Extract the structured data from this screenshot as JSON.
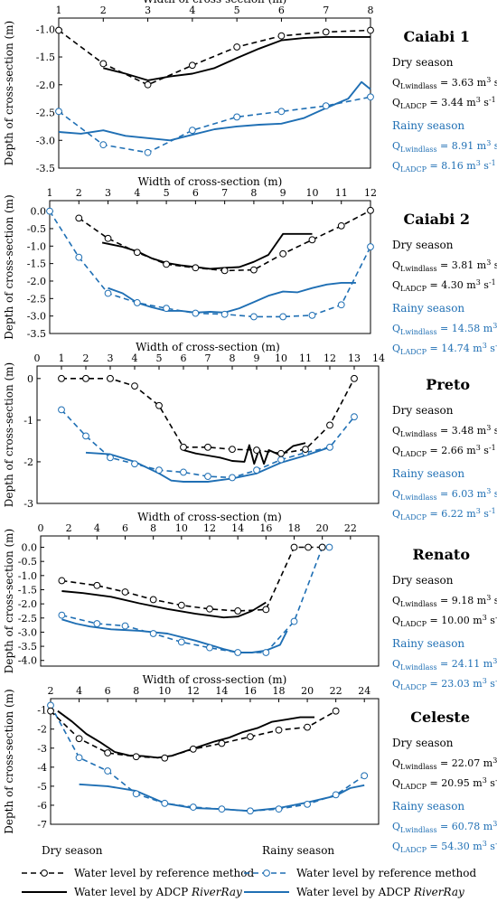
{
  "colors": {
    "dry": "#000000",
    "rainy": "#1f6fb4"
  },
  "labels": {
    "xlabel": "Width of cross-section (m)",
    "ylabel": "Depth of cross-section (m)",
    "dry_season": "Dry season",
    "rainy_season": "Rainy season",
    "q_windlass": "Q",
    "q_windlass_sub": "Lwindlass",
    "q_adcp": "Q",
    "q_adcp_sub": "LADCP",
    "unit_base": " m",
    "unit_m_exp": "3",
    "unit_s": " s",
    "unit_s_exp": "-1"
  },
  "legend": {
    "dry_title": "Dry season",
    "rainy_title": "Rainy season",
    "reference": "Water level by reference method",
    "adcp_prefix": "Water level by ADCP ",
    "adcp_device": "RiverRay"
  },
  "chart_data": [
    {
      "type": "line",
      "title": "Caiabi 1",
      "xlim": [
        1,
        8
      ],
      "ylim": [
        -3.5,
        -0.8
      ],
      "xticks": [
        1,
        2,
        3,
        4,
        5,
        6,
        7,
        8
      ],
      "xtick_labels": [
        "1",
        "2",
        "3",
        "4",
        "5",
        "6",
        "7",
        "8"
      ],
      "yticks": [
        -1.0,
        -1.5,
        -2.0,
        -2.5,
        -3.0,
        -3.5
      ],
      "ytick_labels": [
        "-1.0",
        "-1.5",
        "-2.0",
        "-2.5",
        "-3.0",
        "-3.5"
      ],
      "dry": {
        "q_windlass": "3.63",
        "q_adcp": "3.44",
        "reference": {
          "x": [
            1,
            2,
            3,
            4,
            5,
            6,
            7,
            8
          ],
          "y": [
            -1.02,
            -1.62,
            -2.0,
            -1.65,
            -1.32,
            -1.12,
            -1.05,
            -1.02
          ]
        },
        "adcp": {
          "x": [
            2.0,
            2.5,
            3.0,
            3.5,
            4.0,
            4.5,
            5.0,
            5.5,
            6.0,
            6.5,
            7.0,
            7.5,
            8.0
          ],
          "y": [
            -1.7,
            -1.8,
            -1.92,
            -1.85,
            -1.8,
            -1.7,
            -1.52,
            -1.35,
            -1.2,
            -1.16,
            -1.14,
            -1.14,
            -1.14
          ]
        }
      },
      "rainy": {
        "q_windlass": "8.91",
        "q_adcp": "8.16",
        "reference": {
          "x": [
            1,
            2,
            3,
            4,
            5,
            6,
            7,
            8
          ],
          "y": [
            -2.48,
            -3.08,
            -3.22,
            -2.82,
            -2.58,
            -2.48,
            -2.38,
            -2.22
          ]
        },
        "adcp": {
          "x": [
            1.0,
            1.5,
            2.0,
            2.5,
            3.0,
            3.5,
            4.0,
            4.5,
            5.0,
            5.5,
            6.0,
            6.5,
            7.0,
            7.5,
            7.8,
            8.0
          ],
          "y": [
            -2.85,
            -2.88,
            -2.82,
            -2.92,
            -2.96,
            -3.0,
            -2.9,
            -2.8,
            -2.75,
            -2.72,
            -2.7,
            -2.6,
            -2.42,
            -2.25,
            -1.95,
            -2.08
          ]
        }
      }
    },
    {
      "type": "line",
      "title": "Caiabi 2",
      "xlim": [
        1,
        12
      ],
      "ylim": [
        -3.5,
        0.3
      ],
      "xticks": [
        1,
        2,
        3,
        4,
        5,
        6,
        7,
        8,
        9,
        10,
        11,
        12
      ],
      "xtick_labels": [
        "1",
        "2",
        "3",
        "4",
        "5",
        "6",
        "7",
        "8",
        "9",
        "10",
        "11",
        "12"
      ],
      "yticks": [
        0.0,
        -0.5,
        -1.0,
        -1.5,
        -2.0,
        -2.5,
        -3.0,
        -3.5
      ],
      "ytick_labels": [
        "0.0",
        "-0.5",
        "-1.0",
        "-1.5",
        "-2.0",
        "-2.5",
        "-3.0",
        "-3.5"
      ],
      "dry": {
        "q_windlass": "3.81",
        "q_adcp": "4.30",
        "reference": {
          "x": [
            2,
            3,
            4,
            5,
            6,
            7,
            8,
            9,
            10,
            11,
            12
          ],
          "y": [
            -0.2,
            -0.78,
            -1.18,
            -1.52,
            -1.62,
            -1.7,
            -1.68,
            -1.22,
            -0.82,
            -0.42,
            0.02
          ]
        },
        "adcp": {
          "x": [
            2.8,
            3.5,
            4.0,
            4.5,
            5.0,
            5.5,
            6.0,
            6.5,
            7.0,
            7.5,
            8.0,
            8.5,
            9.0,
            9.5,
            10.0
          ],
          "y": [
            -0.9,
            -1.02,
            -1.15,
            -1.35,
            -1.48,
            -1.55,
            -1.6,
            -1.65,
            -1.62,
            -1.6,
            -1.45,
            -1.25,
            -0.65,
            -0.65,
            -0.65
          ]
        }
      },
      "rainy": {
        "q_windlass": "14.58",
        "q_adcp": "14.74",
        "reference": {
          "x": [
            1,
            2,
            3,
            4,
            5,
            6,
            7,
            8,
            9,
            10,
            11,
            12
          ],
          "y": [
            0.0,
            -1.32,
            -2.35,
            -2.62,
            -2.78,
            -2.92,
            -2.95,
            -3.02,
            -3.02,
            -2.98,
            -2.68,
            -1.02
          ]
        },
        "adcp": {
          "x": [
            3.0,
            3.5,
            4.0,
            4.5,
            5.0,
            5.5,
            6.0,
            6.5,
            7.0,
            7.5,
            8.0,
            8.5,
            9.0,
            9.5,
            10.0,
            10.5,
            11.0,
            11.5
          ],
          "y": [
            -2.2,
            -2.35,
            -2.62,
            -2.75,
            -2.85,
            -2.85,
            -2.9,
            -2.88,
            -2.9,
            -2.78,
            -2.6,
            -2.42,
            -2.3,
            -2.32,
            -2.2,
            -2.1,
            -2.05,
            -2.05
          ]
        }
      }
    },
    {
      "type": "line",
      "title": "Preto",
      "xlim": [
        0,
        14
      ],
      "ylim": [
        -3,
        0.3
      ],
      "xticks": [
        0,
        1,
        2,
        3,
        4,
        5,
        6,
        7,
        8,
        9,
        10,
        11,
        12,
        13,
        14
      ],
      "xtick_labels": [
        "0",
        "1",
        "2",
        "3",
        "4",
        "5",
        "6",
        "7",
        "8",
        "9",
        "10",
        "11",
        "12",
        "13",
        "14"
      ],
      "yticks": [
        0,
        -1,
        -2,
        -3
      ],
      "ytick_labels": [
        "0",
        "-1",
        "-2",
        "-3"
      ],
      "dry": {
        "q_windlass": "3.48",
        "q_adcp": "2.66",
        "reference": {
          "x": [
            1,
            2,
            3,
            4,
            5,
            6,
            7,
            8,
            9,
            10,
            11,
            12,
            13
          ],
          "y": [
            0.0,
            0.0,
            0.0,
            -0.18,
            -0.65,
            -1.65,
            -1.65,
            -1.7,
            -1.72,
            -1.8,
            -1.7,
            -1.12,
            0.0
          ]
        },
        "adcp": {
          "x": [
            6.0,
            6.5,
            7.0,
            7.5,
            8.0,
            8.5,
            8.7,
            8.9,
            9.1,
            9.3,
            9.5,
            10.0,
            10.5,
            11.0
          ],
          "y": [
            -1.72,
            -1.8,
            -1.85,
            -1.9,
            -1.98,
            -2.0,
            -1.6,
            -2.05,
            -1.7,
            -2.05,
            -1.72,
            -1.85,
            -1.62,
            -1.55
          ]
        }
      },
      "rainy": {
        "q_windlass": "6.03",
        "q_adcp": "6.22",
        "reference": {
          "x": [
            1,
            2,
            3,
            4,
            5,
            6,
            7,
            8,
            9,
            10,
            11,
            12,
            13
          ],
          "y": [
            -0.75,
            -1.38,
            -1.9,
            -2.05,
            -2.2,
            -2.25,
            -2.35,
            -2.38,
            -2.2,
            -1.95,
            -1.78,
            -1.65,
            -0.92
          ]
        },
        "adcp": {
          "x": [
            2.0,
            3.0,
            4.0,
            5.0,
            5.5,
            6.0,
            7.0,
            8.0,
            9.0,
            10.0,
            11.0,
            12.0
          ],
          "y": [
            -1.78,
            -1.82,
            -2.0,
            -2.28,
            -2.45,
            -2.48,
            -2.48,
            -2.4,
            -2.28,
            -2.02,
            -1.85,
            -1.65
          ]
        }
      }
    },
    {
      "type": "line",
      "title": "Renato",
      "xlim": [
        0,
        24
      ],
      "ylim": [
        -4.2,
        0.4
      ],
      "xticks": [
        0,
        2,
        4,
        6,
        8,
        10,
        12,
        14,
        16,
        18,
        20,
        22
      ],
      "xtick_labels": [
        "0",
        "2",
        "4",
        "6",
        "8",
        "10",
        "12",
        "14",
        "16",
        "18",
        "20",
        "22"
      ],
      "yticks": [
        0.0,
        -0.5,
        -1.0,
        -1.5,
        -2.0,
        -2.5,
        -3.0,
        -3.5,
        -4.0
      ],
      "ytick_labels": [
        "0.0",
        "-0.5",
        "-1.0",
        "-1.5",
        "-2.0",
        "-2.5",
        "-3.0",
        "-3.5",
        "-4.0"
      ],
      "dry": {
        "q_windlass": "9.18",
        "q_adcp": "10.00",
        "reference": {
          "x": [
            1.5,
            4,
            6,
            8,
            10,
            12,
            14,
            16,
            18,
            19,
            20
          ],
          "y": [
            -1.18,
            -1.35,
            -1.58,
            -1.85,
            -2.05,
            -2.18,
            -2.25,
            -2.2,
            0.0,
            0.0,
            0.0
          ]
        },
        "adcp": {
          "x": [
            1.5,
            3,
            5,
            7,
            9,
            11,
            13,
            14,
            15,
            16
          ],
          "y": [
            -1.55,
            -1.62,
            -1.75,
            -1.98,
            -2.18,
            -2.35,
            -2.48,
            -2.45,
            -2.25,
            -1.95
          ]
        }
      },
      "rainy": {
        "q_windlass": "24.11",
        "q_adcp": "23.03",
        "reference": {
          "x": [
            1.5,
            4,
            6,
            8,
            10,
            12,
            14,
            16,
            18,
            20,
            20.5
          ],
          "y": [
            -2.4,
            -2.7,
            -2.78,
            -3.05,
            -3.35,
            -3.55,
            -3.72,
            -3.72,
            -2.62,
            0.0,
            0.0
          ]
        },
        "adcp": {
          "x": [
            1.5,
            2.5,
            3.5,
            5,
            7,
            9,
            11,
            13,
            14,
            15,
            16,
            17,
            17.5
          ],
          "y": [
            -2.55,
            -2.7,
            -2.8,
            -2.9,
            -2.95,
            -3.05,
            -3.3,
            -3.6,
            -3.72,
            -3.72,
            -3.65,
            -3.45,
            -2.95
          ]
        }
      }
    },
    {
      "type": "line",
      "title": "Celeste",
      "xlim": [
        2,
        25
      ],
      "ylim": [
        -7,
        -0.4
      ],
      "xticks": [
        2,
        4,
        6,
        8,
        10,
        12,
        14,
        16,
        18,
        20,
        22,
        24
      ],
      "xtick_labels": [
        "2",
        "4",
        "6",
        "8",
        "10",
        "12",
        "14",
        "16",
        "18",
        "20",
        "22",
        "24"
      ],
      "yticks": [
        -1,
        -2,
        -3,
        -4,
        -5,
        -6,
        -7
      ],
      "ytick_labels": [
        "-1",
        "-2",
        "-3",
        "-4",
        "-5",
        "-6",
        "-7"
      ],
      "dry": {
        "q_windlass": "22.07",
        "q_adcp": "20.95",
        "reference": {
          "x": [
            2,
            4,
            6,
            8,
            10,
            12,
            14,
            16,
            18,
            20,
            22
          ],
          "y": [
            -1.05,
            -2.5,
            -3.25,
            -3.45,
            -3.52,
            -3.05,
            -2.75,
            -2.4,
            -2.05,
            -1.9,
            -1.05
          ]
        },
        "adcp": {
          "x": [
            2.5,
            3.5,
            4.5,
            5.5,
            6.5,
            7.5,
            8.5,
            9.5,
            10.5,
            11.5,
            12.5,
            13.5,
            14.5,
            15.5,
            16.5,
            17.5,
            18.5,
            19.5,
            20.5
          ],
          "y": [
            -1.05,
            -1.6,
            -2.25,
            -2.7,
            -3.2,
            -3.38,
            -3.42,
            -3.5,
            -3.4,
            -3.15,
            -2.9,
            -2.65,
            -2.45,
            -2.15,
            -1.95,
            -1.62,
            -1.5,
            -1.38,
            -1.38
          ]
        }
      },
      "rainy": {
        "q_windlass": "60.78",
        "q_adcp": "54.30",
        "reference": {
          "x": [
            2,
            4,
            6,
            8,
            10,
            12,
            14,
            16,
            18,
            20,
            22,
            24
          ],
          "y": [
            -0.75,
            -3.5,
            -4.2,
            -5.4,
            -5.9,
            -6.1,
            -6.2,
            -6.3,
            -6.2,
            -5.95,
            -5.45,
            -4.45
          ]
        },
        "adcp": {
          "x": [
            4,
            6,
            8,
            10,
            12,
            14,
            16,
            18,
            20,
            22,
            23,
            24
          ],
          "y": [
            -4.9,
            -5.0,
            -5.25,
            -5.9,
            -6.15,
            -6.2,
            -6.3,
            -6.15,
            -5.85,
            -5.5,
            -5.1,
            -4.95
          ]
        }
      }
    }
  ]
}
